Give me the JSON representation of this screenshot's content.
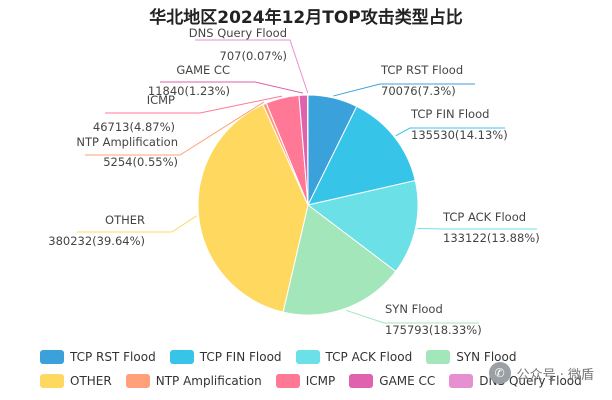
{
  "chart_data": {
    "type": "pie",
    "title": "华北地区2024年12月TOP攻击类型占比",
    "slices": [
      {
        "name": "TCP RST Flood",
        "value": 70076,
        "label": "70076(7.3%)",
        "color": "#3ba1db"
      },
      {
        "name": "TCP FIN Flood",
        "value": 135530,
        "label": "135530(14.13%)",
        "color": "#36c5e9"
      },
      {
        "name": "TCP ACK Flood",
        "value": 133122,
        "label": "133122(13.88%)",
        "color": "#6be0e6"
      },
      {
        "name": "SYN Flood",
        "value": 175793,
        "label": "175793(18.33%)",
        "color": "#a3e6b9"
      },
      {
        "name": "OTHER",
        "value": 380232,
        "label": "380232(39.64%)",
        "color": "#ffd95f"
      },
      {
        "name": "NTP Amplification",
        "value": 5254,
        "label": "5254(0.55%)",
        "color": "#ffa07a"
      },
      {
        "name": "ICMP",
        "value": 46713,
        "label": "46713(4.87%)",
        "color": "#ff7896"
      },
      {
        "name": "GAME CC",
        "value": 11840,
        "label": "11840(1.23%)",
        "color": "#e062ae"
      },
      {
        "name": "DNS Query Flood",
        "value": 707,
        "label": "707(0.07%)",
        "color": "#e690d1"
      }
    ],
    "legend_position": "bottom"
  },
  "watermark": {
    "text": "公众号 · 微盾"
  }
}
